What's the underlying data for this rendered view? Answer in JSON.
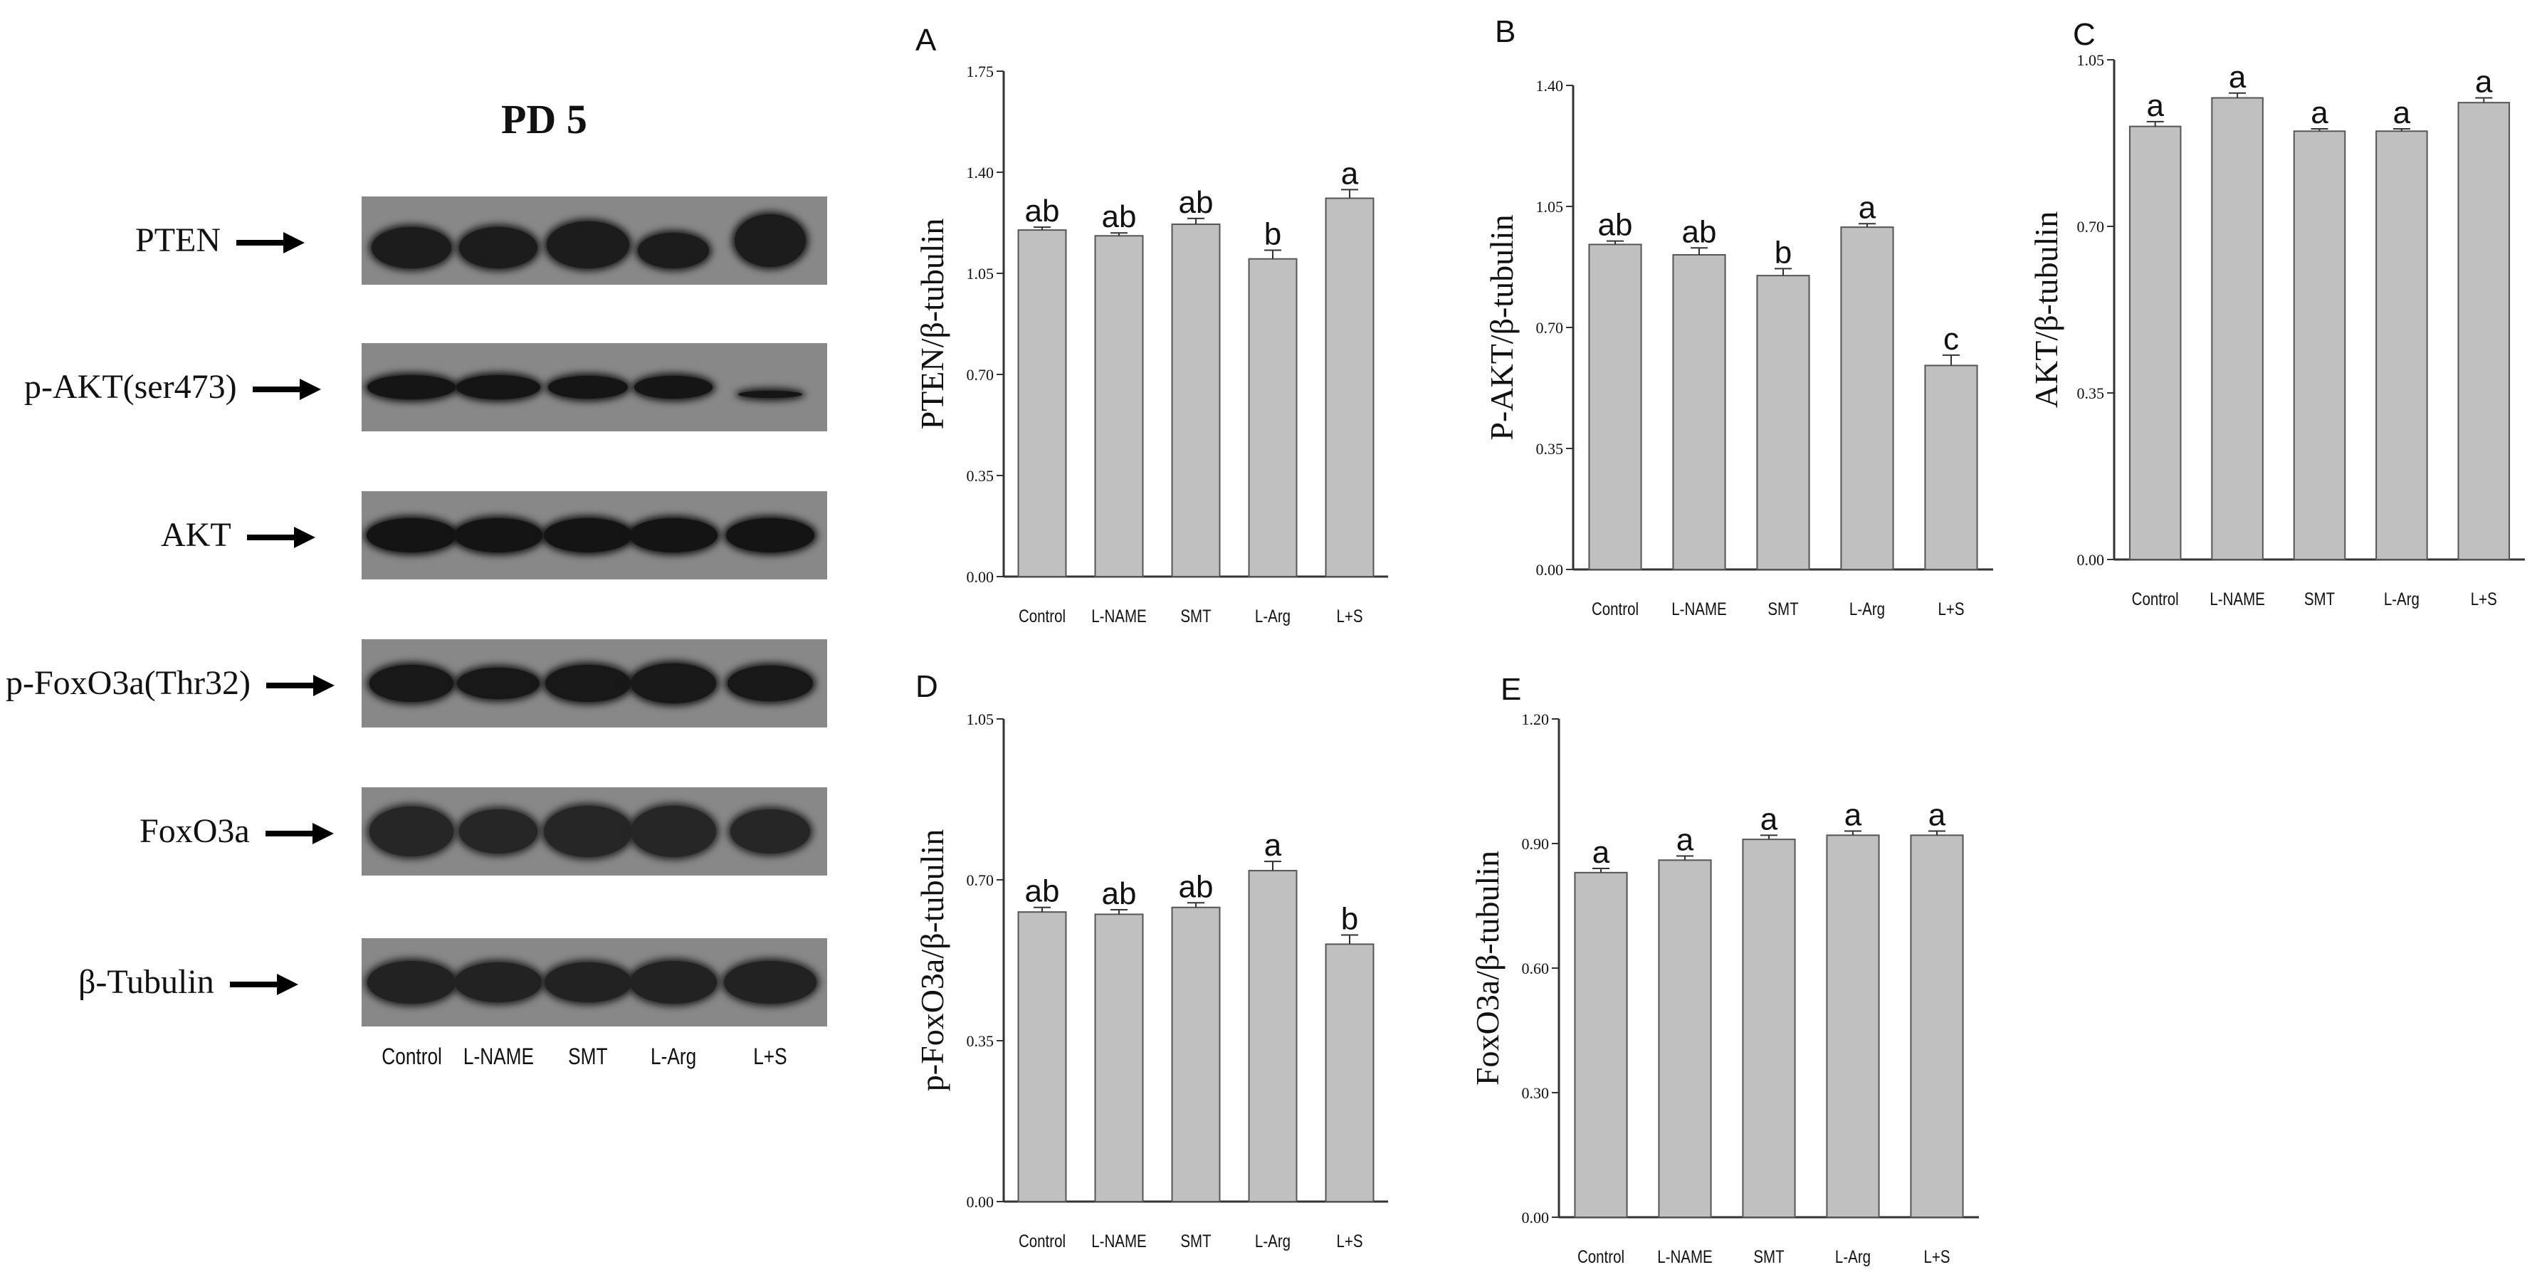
{
  "blot": {
    "title": "PD 5",
    "rows": [
      {
        "label": "PTEN"
      },
      {
        "label": "p-AKT(ser473)"
      },
      {
        "label": "AKT"
      },
      {
        "label": "p-FoxO3a(Thr32)"
      },
      {
        "label": "FoxO3a"
      },
      {
        "label": "β-Tubulin"
      }
    ],
    "lanes": [
      "Control",
      "L-NAME",
      "SMT",
      "L-Arg",
      "L+S"
    ]
  },
  "chart_data": [
    {
      "panel": "A",
      "type": "bar",
      "categories": [
        "Control",
        "L-NAME",
        "SMT",
        "L-Arg",
        "L+S"
      ],
      "values": [
        1.2,
        1.18,
        1.22,
        1.1,
        1.31
      ],
      "errors": [
        0.01,
        0.01,
        0.02,
        0.03,
        0.03
      ],
      "letters": [
        "ab",
        "ab",
        "ab",
        "b",
        "a"
      ],
      "ylabel": "PTEN/β-tubulin",
      "ylim": [
        0,
        1.75
      ],
      "yticks": [
        "0.00",
        "0.35",
        "0.70",
        "1.05",
        "1.40",
        "1.75"
      ]
    },
    {
      "panel": "B",
      "type": "bar",
      "categories": [
        "Control",
        "L-NAME",
        "SMT",
        "L-Arg",
        "L+S"
      ],
      "values": [
        0.94,
        0.91,
        0.85,
        0.99,
        0.59
      ],
      "errors": [
        0.01,
        0.02,
        0.02,
        0.01,
        0.03
      ],
      "letters": [
        "ab",
        "ab",
        "b",
        "a",
        "c"
      ],
      "ylabel": "P-AKT/β-tubulin",
      "ylim": [
        0,
        1.4
      ],
      "yticks": [
        "0.00",
        "0.35",
        "0.70",
        "1.05",
        "1.40"
      ]
    },
    {
      "panel": "C",
      "type": "bar",
      "categories": [
        "Control",
        "L-NAME",
        "SMT",
        "L-Arg",
        "L+S"
      ],
      "values": [
        0.91,
        0.97,
        0.9,
        0.9,
        0.96
      ],
      "errors": [
        0.01,
        0.01,
        0.005,
        0.005,
        0.01
      ],
      "letters": [
        "a",
        "a",
        "a",
        "a",
        "a"
      ],
      "ylabel": "AKT/β-tubulin",
      "ylim": [
        0,
        1.05
      ],
      "yticks": [
        "0.00",
        "0.35",
        "0.70",
        "1.05"
      ]
    },
    {
      "panel": "D",
      "type": "bar",
      "categories": [
        "Control",
        "L-NAME",
        "SMT",
        "L-Arg",
        "L+S"
      ],
      "values": [
        0.63,
        0.625,
        0.64,
        0.72,
        0.56
      ],
      "errors": [
        0.01,
        0.01,
        0.01,
        0.02,
        0.02
      ],
      "letters": [
        "ab",
        "ab",
        "ab",
        "a",
        "b"
      ],
      "ylabel": "p-FoxO3a/β-tubulin",
      "ylim": [
        0,
        1.05
      ],
      "yticks": [
        "0.00",
        "0.35",
        "0.70",
        "1.05"
      ]
    },
    {
      "panel": "E",
      "type": "bar",
      "categories": [
        "Control",
        "L-NAME",
        "SMT",
        "L-Arg",
        "L+S"
      ],
      "values": [
        0.83,
        0.86,
        0.91,
        0.92,
        0.92
      ],
      "errors": [
        0.01,
        0.01,
        0.01,
        0.01,
        0.01
      ],
      "letters": [
        "a",
        "a",
        "a",
        "a",
        "a"
      ],
      "ylabel": "FoxO3a/β-tubulin",
      "ylim": [
        0,
        1.2
      ],
      "yticks": [
        "0.00",
        "0.30",
        "0.60",
        "0.90",
        "1.20"
      ]
    }
  ]
}
